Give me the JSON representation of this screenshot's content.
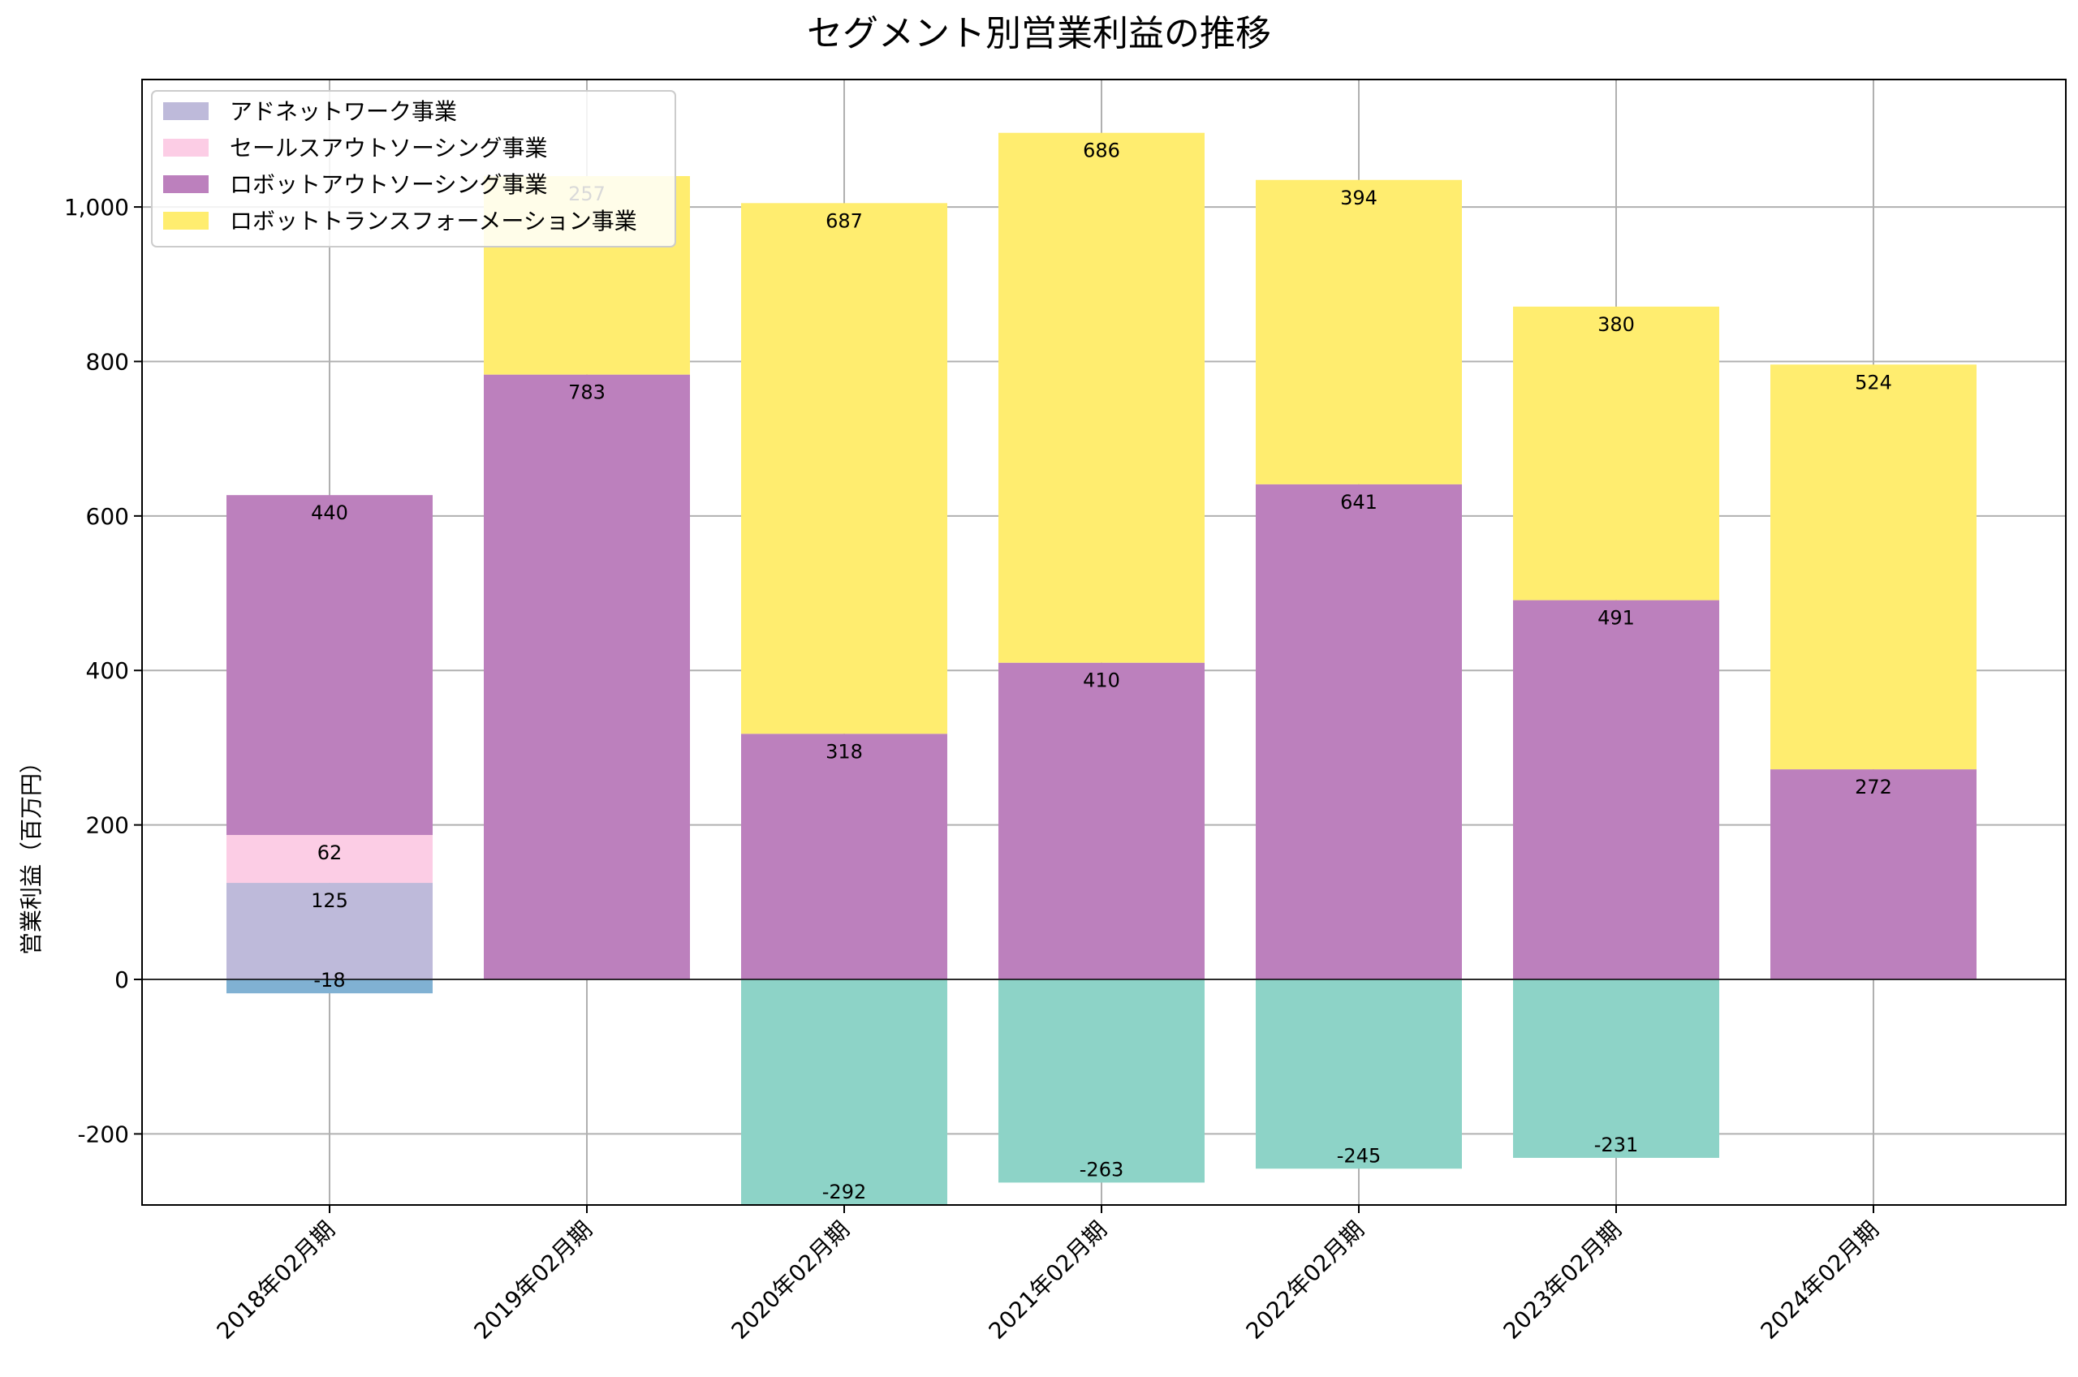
{
  "chart_data": {
    "type": "bar",
    "stacked": true,
    "title": "セグメント別営業利益の推移",
    "xlabel": "",
    "ylabel": "営業利益（百万円）",
    "ylim": [
      -292,
      1165
    ],
    "yticks": [
      -200,
      0,
      200,
      400,
      600,
      800,
      1000
    ],
    "ytick_labels": [
      "-200",
      "0",
      "200",
      "400",
      "600",
      "800",
      "1,000"
    ],
    "grid": true,
    "legend_position": "top-left",
    "categories": [
      "2018年02月期",
      "2019年02月期",
      "2020年02月期",
      "2021年02月期",
      "2022年02月期",
      "2023年02月期",
      "2024年02月期"
    ],
    "series": [
      {
        "name": "",
        "color": "#8dd3c7",
        "values": [
          null,
          null,
          -292,
          -263,
          -245,
          -231,
          null
        ],
        "in_legend": false
      },
      {
        "name": "",
        "color": "#80b1d3",
        "values": [
          -18,
          null,
          null,
          null,
          null,
          null,
          null
        ],
        "in_legend": false
      },
      {
        "name": "アドネットワーク事業",
        "color": "#bebada",
        "values": [
          125,
          null,
          null,
          null,
          null,
          null,
          null
        ],
        "in_legend": true
      },
      {
        "name": "セールスアウトソーシング事業",
        "color": "#fccde5",
        "values": [
          62,
          null,
          null,
          null,
          null,
          null,
          null
        ],
        "in_legend": true
      },
      {
        "name": "ロボットアウトソーシング事業",
        "color": "#bc80bd",
        "values": [
          440,
          783,
          318,
          410,
          641,
          491,
          272
        ],
        "in_legend": true
      },
      {
        "name": "ロボットトランスフォーメーション事業",
        "color": "#ffed6f",
        "values": [
          null,
          257,
          687,
          686,
          394,
          380,
          524
        ],
        "in_legend": true
      }
    ]
  }
}
